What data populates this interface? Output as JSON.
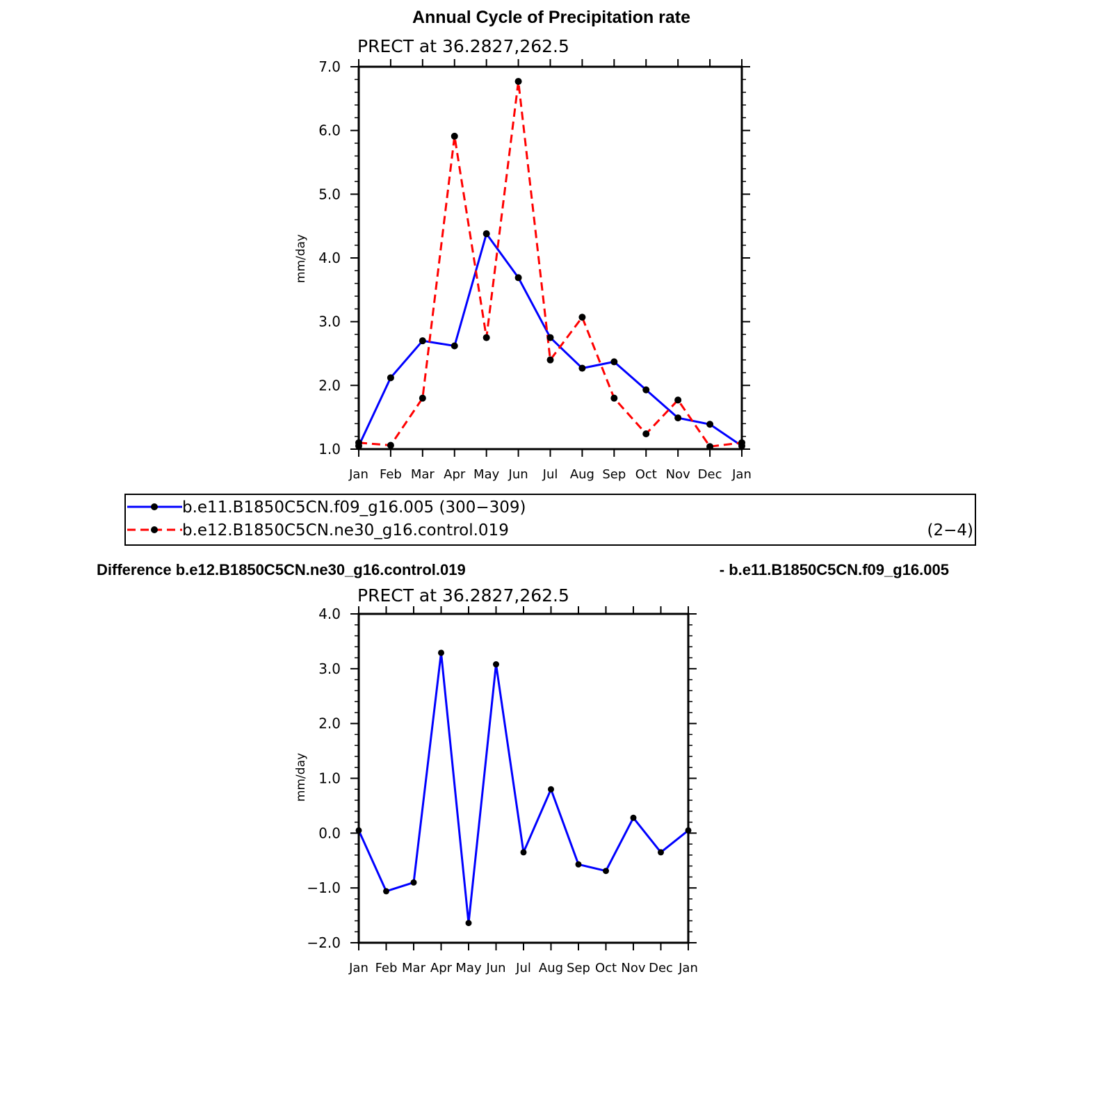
{
  "colors": {
    "model1": "#0000ff",
    "model2": "#ff0000",
    "marker": "#000000"
  },
  "chart_data": [
    {
      "type": "line",
      "title": "Annual Cycle of Precipitation rate",
      "subtitle": "PRECT at 36.2827,262.5",
      "ylabel": "mm/day",
      "ylim": [
        1.0,
        7.0
      ],
      "yticks": [
        "1.0",
        "2.0",
        "3.0",
        "4.0",
        "5.0",
        "6.0",
        "7.0"
      ],
      "categories": [
        "Jan",
        "Feb",
        "Mar",
        "Apr",
        "May",
        "Jun",
        "Jul",
        "Aug",
        "Sep",
        "Oct",
        "Nov",
        "Dec",
        "Jan"
      ],
      "series": [
        {
          "name": "b.e11.B1850C5CN.f09_g16.005 (300−309)",
          "style": "solid",
          "color": "#0000ff",
          "values": [
            1.05,
            2.12,
            2.7,
            2.62,
            4.38,
            3.69,
            2.75,
            2.27,
            2.37,
            1.93,
            1.49,
            1.39,
            1.05
          ]
        },
        {
          "name": "b.e12.B1850C5CN.ne30_g16.control.019",
          "style": "dashed",
          "color": "#ff0000",
          "values": [
            1.1,
            1.06,
            1.8,
            5.91,
            2.75,
            6.77,
            2.4,
            3.07,
            1.8,
            1.24,
            1.77,
            1.04,
            1.1
          ]
        }
      ],
      "legend": {
        "placement": "below",
        "suffix": "(2−4)"
      }
    },
    {
      "type": "line",
      "title": "Difference b.e12.B1850C5CN.ne30_g16.control.019",
      "title_right": "- b.e11.B1850C5CN.f09_g16.005",
      "subtitle": "PRECT at 36.2827,262.5",
      "ylabel": "mm/day",
      "ylim": [
        -2.0,
        4.0
      ],
      "yticks": [
        "−2.0",
        "−1.0",
        "0.0",
        "1.0",
        "2.0",
        "3.0",
        "4.0"
      ],
      "categories": [
        "Jan",
        "Feb",
        "Mar",
        "Apr",
        "May",
        "Jun",
        "Jul",
        "Aug",
        "Sep",
        "Oct",
        "Nov",
        "Dec",
        "Jan"
      ],
      "series": [
        {
          "style": "solid",
          "color": "#0000ff",
          "values": [
            0.05,
            -1.06,
            -0.9,
            3.29,
            -1.64,
            3.08,
            -0.35,
            0.8,
            -0.57,
            -0.69,
            0.28,
            -0.35,
            0.05
          ]
        }
      ]
    }
  ]
}
